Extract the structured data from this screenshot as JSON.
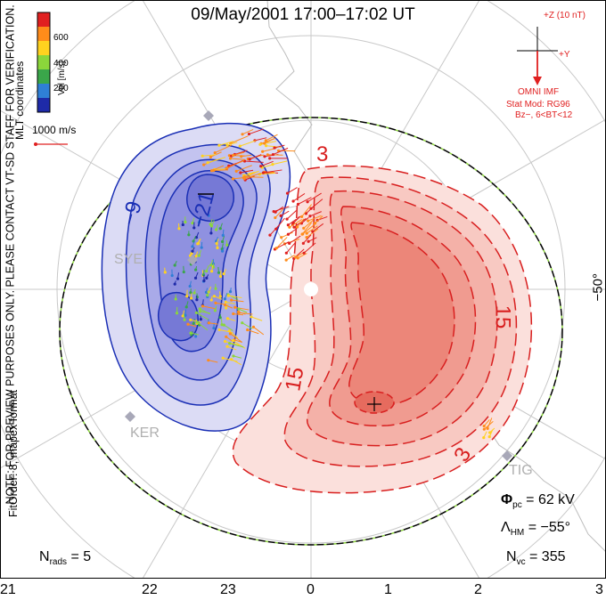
{
  "title": "09/May/2001 17:00–17:02 UT",
  "side_note": "NOTE: FOR PREVIEW PURPOSES ONLY. PLEASE CONTACT VT-SD STAFF FOR VERIFICATION.",
  "side_fit": "FitOrder: 8, mapex format",
  "coord_label": "MLT coordinates",
  "lat_label": "−50°",
  "velocity_scale": {
    "title": "Vel [m/s]",
    "ticks": [
      "600",
      "400",
      "200"
    ],
    "colors": [
      "#e02020",
      "#ff8c1a",
      "#ffd21f",
      "#8bd63b",
      "#3aa64a",
      "#2f7fd6",
      "#1e2aa8"
    ]
  },
  "reference_vector_label": "1000 m/s",
  "hour_labels": [
    "21",
    "22",
    "23",
    "0",
    "1",
    "2",
    "3"
  ],
  "imf": {
    "z_label": "+Z (10 nT)",
    "y_label": "+Y",
    "source": "OMNI IMF",
    "model": "Stat Mod: RG96",
    "condition": "Bz−, 6<BT<12"
  },
  "stats": {
    "phi_symbol": "Φ",
    "phi_sub": "pc",
    "phi_value": " = 62 kV",
    "lambda_symbol": "Λ",
    "lambda_sub": "HM",
    "lambda_value": " = −55°",
    "nvc_symbol": "N",
    "nvc_sub": "vc",
    "nvc_value": " = 355",
    "nrads_symbol": "N",
    "nrads_sub": "rads",
    "nrads_value": " = 5"
  },
  "contour_labels": {
    "neg_inner": "−21",
    "neg_mid": "−9",
    "pos_outer": "3",
    "pos_right": "15",
    "pos_left": "15",
    "pos_bottom": "3"
  },
  "sites": [
    "SYE",
    "KER",
    "TIG"
  ],
  "colors": {
    "negative": "#1a2fb5",
    "positive": "#d81f1f",
    "boundary": "#000000",
    "grid": "#c8c8c8"
  }
}
